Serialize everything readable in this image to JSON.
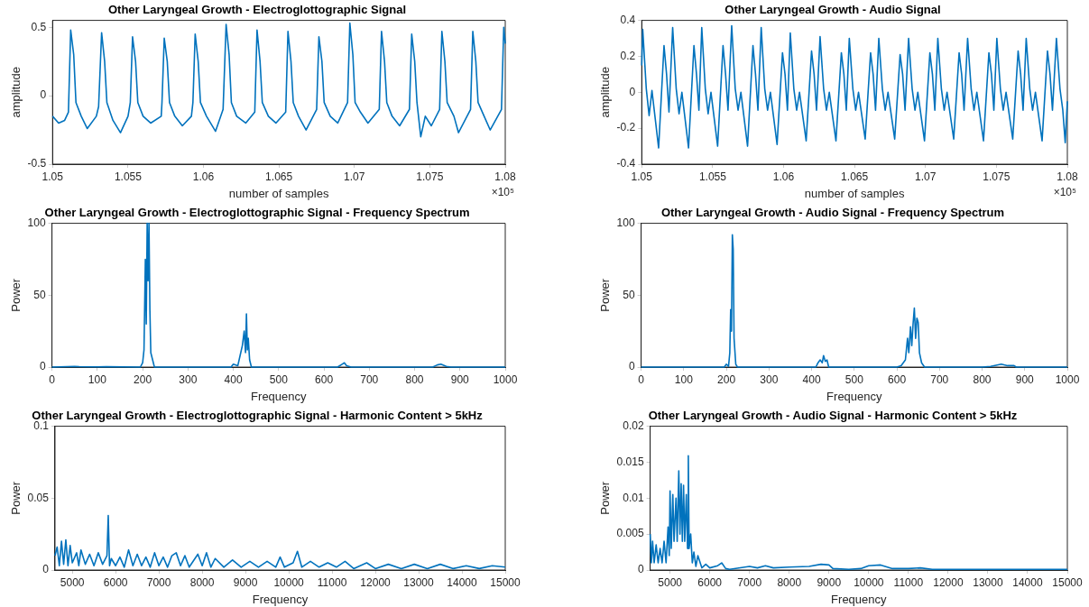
{
  "chart_data": [
    {
      "type": "line",
      "title": "Other Laryngeal Growth - Electroglottographic Signal",
      "xlabel": "number of samples",
      "ylabel": "amplitude",
      "color": "#0072bd",
      "annotations": [
        "×10⁵"
      ],
      "xlim": [
        1.05,
        1.08
      ],
      "xticks": [
        1.05,
        1.055,
        1.06,
        1.065,
        1.07,
        1.075,
        1.08
      ],
      "ylim": [
        -0.5,
        0.55
      ],
      "yticks": [
        -0.5,
        0,
        0.5
      ],
      "x": [
        1.05,
        1.0504,
        1.0508,
        1.05105,
        1.0512,
        1.0514,
        1.05155,
        1.0519,
        1.0523,
        1.0529,
        1.05305,
        1.05325,
        1.05345,
        1.0536,
        1.054,
        1.0545,
        1.055,
        1.05515,
        1.0553,
        1.0555,
        1.05565,
        1.056,
        1.0565,
        1.0572,
        1.05725,
        1.0574,
        1.0576,
        1.05775,
        1.0581,
        1.0586,
        1.0592,
        1.0593,
        1.05945,
        1.05965,
        1.0598,
        1.0602,
        1.0608,
        1.0613,
        1.0615,
        1.0617,
        1.06185,
        1.0622,
        1.0628,
        1.0634,
        1.06355,
        1.06375,
        1.0639,
        1.0643,
        1.0648,
        1.06545,
        1.0656,
        1.0658,
        1.06595,
        1.0663,
        1.0668,
        1.0675,
        1.06765,
        1.06785,
        1.068,
        1.0684,
        1.0689,
        1.06955,
        1.0697,
        1.0699,
        1.07005,
        1.0704,
        1.0709,
        1.07165,
        1.0718,
        1.072,
        1.07215,
        1.0725,
        1.073,
        1.07365,
        1.0738,
        1.074,
        1.07415,
        1.0744,
        1.0747,
        1.0751,
        1.07565,
        1.0758,
        1.076,
        1.07615,
        1.0766,
        1.0769,
        1.0777,
        1.07785,
        1.07805,
        1.0782,
        1.0786,
        1.079,
        1.07975,
        1.0799,
        1.08
      ],
      "values": [
        -0.15,
        -0.2,
        -0.18,
        -0.12,
        0.48,
        0.3,
        -0.05,
        -0.15,
        -0.24,
        -0.15,
        -0.08,
        0.46,
        0.25,
        -0.05,
        -0.18,
        -0.27,
        -0.15,
        -0.05,
        0.43,
        0.25,
        -0.05,
        -0.15,
        -0.2,
        -0.15,
        -0.05,
        0.42,
        0.25,
        -0.05,
        -0.15,
        -0.22,
        -0.15,
        -0.05,
        0.45,
        0.25,
        -0.05,
        -0.15,
        -0.26,
        -0.1,
        0.52,
        0.3,
        -0.05,
        -0.15,
        -0.2,
        -0.12,
        0.48,
        0.25,
        -0.05,
        -0.15,
        -0.2,
        -0.12,
        0.47,
        0.25,
        -0.05,
        -0.15,
        -0.25,
        -0.1,
        0.43,
        0.25,
        -0.05,
        -0.15,
        -0.2,
        -0.05,
        0.53,
        0.3,
        -0.05,
        -0.12,
        -0.2,
        -0.1,
        0.47,
        0.25,
        -0.05,
        -0.15,
        -0.22,
        -0.1,
        0.45,
        0.25,
        -0.05,
        -0.3,
        -0.15,
        -0.22,
        -0.1,
        0.47,
        0.25,
        -0.05,
        -0.15,
        -0.27,
        -0.1,
        0.47,
        0.25,
        -0.05,
        -0.15,
        -0.25,
        -0.1,
        0.5,
        0.38
      ]
    },
    {
      "type": "line",
      "title": "Other Laryngeal Growth - Audio Signal",
      "xlabel": "number of samples",
      "ylabel": "amplitude",
      "color": "#0072bd",
      "annotations": [
        "×10⁵"
      ],
      "xlim": [
        1.05,
        1.08
      ],
      "xticks": [
        1.05,
        1.055,
        1.06,
        1.065,
        1.07,
        1.075,
        1.08
      ],
      "ylim": [
        -0.4,
        0.4
      ],
      "yticks": [
        -0.4,
        -0.2,
        0,
        0.2,
        0.4
      ],
      "x": [
        1.05,
        1.05007,
        1.05032,
        1.05052,
        1.05072,
        1.05119,
        1.05157,
        1.05175,
        1.05192,
        1.05218,
        1.05243,
        1.05263,
        1.05283,
        1.0533,
        1.05368,
        1.05386,
        1.05403,
        1.05423,
        1.05448,
        1.05468,
        1.05488,
        1.05535,
        1.05573,
        1.05591,
        1.05608,
        1.05634,
        1.05659,
        1.05679,
        1.05699,
        1.05746,
        1.05784,
        1.05802,
        1.05819,
        1.05842,
        1.05867,
        1.05887,
        1.05907,
        1.05954,
        1.05992,
        1.0601,
        1.06027,
        1.06047,
        1.06072,
        1.06092,
        1.06112,
        1.06159,
        1.06197,
        1.06215,
        1.06232,
        1.06257,
        1.06282,
        1.06302,
        1.06322,
        1.06369,
        1.06407,
        1.06425,
        1.06442,
        1.06463,
        1.06488,
        1.06508,
        1.06528,
        1.06575,
        1.06613,
        1.06631,
        1.06648,
        1.06671,
        1.06696,
        1.06716,
        1.06736,
        1.06783,
        1.06821,
        1.06839,
        1.06856,
        1.06881,
        1.06906,
        1.06926,
        1.06946,
        1.06993,
        1.07031,
        1.07049,
        1.07066,
        1.07087,
        1.07112,
        1.07132,
        1.07152,
        1.07199,
        1.07237,
        1.07255,
        1.07272,
        1.07297,
        1.07322,
        1.07342,
        1.07362,
        1.07409,
        1.07447,
        1.07465,
        1.07482,
        1.07503,
        1.07528,
        1.07548,
        1.07568,
        1.07615,
        1.07653,
        1.07671,
        1.07688,
        1.0771,
        1.07735,
        1.07755,
        1.07775,
        1.07822,
        1.0786,
        1.07878,
        1.07895,
        1.07923,
        1.07948,
        1.07968,
        1.07985,
        1.08
      ],
      "values": [
        0.15,
        0.35,
        0.02,
        -0.13,
        0.01,
        -0.31,
        0.26,
        0.1,
        -0.11,
        0.36,
        0.02,
        -0.12,
        0,
        -0.31,
        0.26,
        0.1,
        -0.1,
        0.36,
        0.02,
        -0.12,
        0,
        -0.3,
        0.26,
        0.1,
        -0.1,
        0.37,
        0.02,
        -0.1,
        0,
        -0.3,
        0.26,
        0.1,
        -0.1,
        0.36,
        0.02,
        -0.1,
        0,
        -0.29,
        0.22,
        0.1,
        -0.1,
        0.33,
        0.02,
        -0.1,
        0,
        -0.27,
        0.23,
        0.1,
        -0.1,
        0.31,
        0.02,
        -0.1,
        0,
        -0.27,
        0.22,
        0.1,
        -0.1,
        0.3,
        0.02,
        -0.1,
        0,
        -0.26,
        0.22,
        0.1,
        -0.1,
        0.3,
        0.02,
        -0.1,
        0,
        -0.26,
        0.21,
        0.1,
        -0.1,
        0.3,
        0.02,
        -0.1,
        0,
        -0.27,
        0.22,
        0.1,
        -0.1,
        0.3,
        0.02,
        -0.1,
        0,
        -0.26,
        0.22,
        0.1,
        -0.1,
        0.3,
        0.02,
        -0.1,
        0,
        -0.27,
        0.22,
        0.1,
        -0.1,
        0.3,
        0.02,
        -0.1,
        0,
        -0.26,
        0.23,
        0.1,
        -0.1,
        0.3,
        0.02,
        -0.1,
        0,
        -0.27,
        0.23,
        0.1,
        -0.1,
        0.3,
        0.02,
        -0.1,
        -0.28,
        -0.05
      ]
    },
    {
      "type": "line",
      "title": "Other Laryngeal Growth - Electroglottographic Signal - Frequency Spectrum",
      "xlabel": "Frequency",
      "ylabel": "Power",
      "color": "#0072bd",
      "xlim": [
        0,
        1000
      ],
      "xticks": [
        0,
        100,
        200,
        300,
        400,
        500,
        600,
        700,
        800,
        900,
        1000
      ],
      "ylim": [
        0,
        100
      ],
      "yticks": [
        0,
        50,
        100
      ],
      "x": [
        0,
        50,
        60,
        100,
        120,
        195,
        200,
        203,
        206,
        208,
        210,
        212,
        214,
        216,
        218,
        222,
        226,
        395,
        400,
        410,
        415,
        420,
        424,
        427,
        429,
        431,
        433,
        436,
        440,
        630,
        640,
        645,
        650,
        660,
        840,
        850,
        858,
        870,
        880,
        1000
      ],
      "values": [
        0,
        0.5,
        0.3,
        0.2,
        0.3,
        0,
        3,
        12,
        75,
        30,
        100,
        60,
        100,
        40,
        10,
        5,
        0,
        0,
        2,
        1,
        8,
        15,
        25,
        10,
        37,
        12,
        20,
        5,
        0,
        0,
        2,
        3,
        1,
        0,
        0,
        1.5,
        2,
        0.5,
        0,
        0
      ]
    },
    {
      "type": "line",
      "title": "Other Laryngeal Growth - Audio Signal - Frequency Spectrum",
      "xlabel": "Frequency",
      "ylabel": "Power",
      "color": "#0072bd",
      "xlim": [
        0,
        1000
      ],
      "xticks": [
        0,
        100,
        200,
        300,
        400,
        500,
        600,
        700,
        800,
        900,
        1000
      ],
      "ylim": [
        0,
        100
      ],
      "yticks": [
        0,
        50,
        100
      ],
      "x": [
        0,
        195,
        200,
        205,
        208,
        210,
        212,
        214,
        216,
        218,
        222,
        226,
        410,
        415,
        420,
        425,
        428,
        432,
        436,
        440,
        600,
        610,
        620,
        625,
        628,
        632,
        635,
        638,
        641,
        644,
        647,
        650,
        653,
        658,
        665,
        800,
        820,
        845,
        860,
        875,
        880,
        1000
      ],
      "values": [
        0,
        0,
        2,
        0.5,
        10,
        40,
        25,
        92,
        82,
        20,
        2,
        0,
        0,
        3,
        5,
        3,
        8,
        4,
        5,
        0,
        0,
        1,
        5,
        20,
        10,
        28,
        15,
        30,
        41,
        20,
        34,
        31,
        10,
        3,
        0,
        0,
        0.5,
        2,
        1,
        1,
        0,
        0
      ]
    },
    {
      "type": "line",
      "title": "Other Laryngeal Growth - Electroglottographic Signal - Harmonic Content > 5kHz",
      "xlabel": "Frequency",
      "ylabel": "Power",
      "color": "#0072bd",
      "xlim": [
        4600,
        15000
      ],
      "xticks": [
        5000,
        6000,
        7000,
        8000,
        9000,
        10000,
        11000,
        12000,
        13000,
        14000,
        15000
      ],
      "ylim": [
        0,
        0.1
      ],
      "yticks": [
        0,
        0.05,
        0.1
      ],
      "x": [
        4600,
        4650,
        4700,
        4750,
        4800,
        4850,
        4900,
        4950,
        5000,
        5100,
        5150,
        5200,
        5300,
        5400,
        5500,
        5600,
        5700,
        5800,
        5830,
        5860,
        5900,
        6000,
        6100,
        6200,
        6300,
        6400,
        6500,
        6600,
        6700,
        6800,
        6900,
        7000,
        7100,
        7200,
        7300,
        7400,
        7500,
        7600,
        7700,
        7900,
        8000,
        8100,
        8200,
        8300,
        8500,
        8700,
        8900,
        9100,
        9300,
        9500,
        9700,
        9800,
        9900,
        10100,
        10200,
        10300,
        10500,
        10700,
        10900,
        11100,
        11300,
        11500,
        11800,
        12000,
        12300,
        12600,
        12900,
        13200,
        13500,
        13800,
        14100,
        14400,
        14700,
        15000
      ],
      "values": [
        0.01,
        0.016,
        0.003,
        0.02,
        0.004,
        0.021,
        0.003,
        0.017,
        0.005,
        0.012,
        0.003,
        0.014,
        0.004,
        0.011,
        0.003,
        0.012,
        0.004,
        0.01,
        0.038,
        0.003,
        0.008,
        0.003,
        0.009,
        0.002,
        0.014,
        0.003,
        0.011,
        0.003,
        0.009,
        0.002,
        0.012,
        0.003,
        0.009,
        0.002,
        0.01,
        0.012,
        0.003,
        0.01,
        0.002,
        0.011,
        0.003,
        0.012,
        0.002,
        0.008,
        0.002,
        0.007,
        0.002,
        0.006,
        0.002,
        0.006,
        0.002,
        0.009,
        0.002,
        0.005,
        0.013,
        0.002,
        0.006,
        0.002,
        0.005,
        0.002,
        0.006,
        0.001,
        0.005,
        0.001,
        0.004,
        0.001,
        0.004,
        0.001,
        0.004,
        0.001,
        0.003,
        0.001,
        0.003,
        0.002
      ]
    },
    {
      "type": "line",
      "title": "Other Laryngeal Growth - Audio Signal - Harmonic Content > 5kHz",
      "xlabel": "Frequency",
      "ylabel": "Power",
      "color": "#0072bd",
      "xlim": [
        4500,
        15000
      ],
      "xticks": [
        5000,
        6000,
        7000,
        8000,
        9000,
        10000,
        11000,
        12000,
        13000,
        14000,
        15000
      ],
      "ylim": [
        0,
        0.02
      ],
      "yticks": [
        0,
        0.005,
        0.01,
        0.015,
        0.02
      ],
      "x": [
        4500,
        4530,
        4560,
        4600,
        4650,
        4700,
        4750,
        4800,
        4850,
        4900,
        4950,
        4980,
        5000,
        5030,
        5070,
        5100,
        5150,
        5180,
        5220,
        5250,
        5280,
        5310,
        5340,
        5370,
        5410,
        5440,
        5460,
        5480,
        5520,
        5560,
        5600,
        5650,
        5700,
        5800,
        5900,
        6000,
        6200,
        6300,
        6400,
        6500,
        7000,
        7200,
        7400,
        7600,
        8000,
        8500,
        8800,
        9000,
        9100,
        9500,
        9800,
        10000,
        10300,
        10600,
        11000,
        11300,
        11600,
        12000,
        15000
      ],
      "values": [
        0.005,
        0.001,
        0.004,
        0.001,
        0.0035,
        0.001,
        0.003,
        0.001,
        0.004,
        0.001,
        0.006,
        0.002,
        0.011,
        0.003,
        0.0105,
        0.004,
        0.01,
        0.004,
        0.0138,
        0.005,
        0.012,
        0.004,
        0.0118,
        0.004,
        0.0105,
        0.003,
        0.0159,
        0.003,
        0.005,
        0.001,
        0.0025,
        0.0005,
        0.002,
        0.0003,
        0.0008,
        0.0003,
        0.0006,
        0.001,
        0.0002,
        0.0001,
        0.0005,
        0.0003,
        0.0006,
        0.0003,
        0.0004,
        0.0005,
        0.0008,
        0.0007,
        0.0002,
        0.0001,
        0.0002,
        0.0006,
        0.0007,
        0.0002,
        0.0002,
        0.0003,
        0.0001,
        0.0001,
        0.0001
      ]
    }
  ]
}
